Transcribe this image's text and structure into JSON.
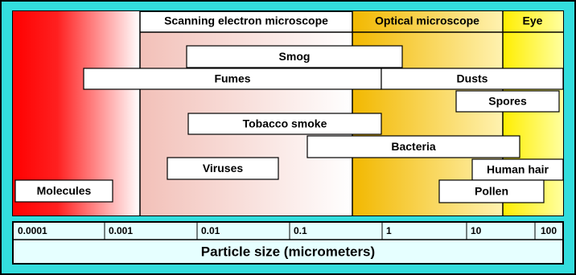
{
  "header": {
    "regions": [
      "Scanning electron microscope",
      "Optical microscope",
      "Eye"
    ]
  },
  "boxes": [
    {
      "label": "Smog"
    },
    {
      "label": "Fumes"
    },
    {
      "label": "Dusts"
    },
    {
      "label": "Spores"
    },
    {
      "label": "Tobacco smoke"
    },
    {
      "label": "Bacteria"
    },
    {
      "label": "Viruses"
    },
    {
      "label": "Human hair"
    },
    {
      "label": "Molecules"
    },
    {
      "label": "Pollen"
    }
  ],
  "scale": {
    "ticks": [
      "0.0001",
      "0.001",
      "0.01",
      "0.1",
      "1",
      "10",
      "100"
    ],
    "axis_label": "Particle size (micrometers)"
  }
}
